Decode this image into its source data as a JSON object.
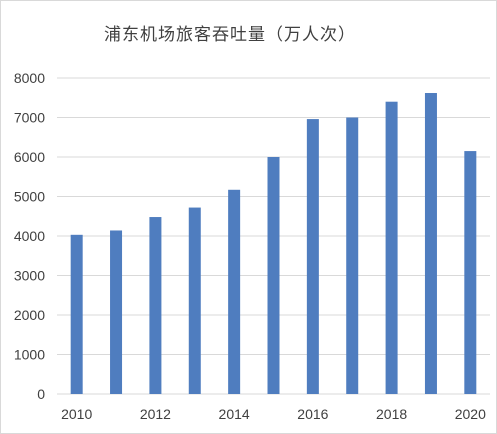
{
  "chart_data": {
    "type": "bar",
    "title": "浦东机场旅客吞吐量（万人次）",
    "xlabel": "",
    "ylabel": "",
    "categories": [
      "2010",
      "2011",
      "2012",
      "2013",
      "2014",
      "2015",
      "2016",
      "2017",
      "2018",
      "2019",
      "2020"
    ],
    "x_tick_labels": [
      "2010",
      "2012",
      "2014",
      "2016",
      "2018",
      "2020"
    ],
    "values": [
      4030,
      4140,
      4480,
      4720,
      5170,
      6000,
      6960,
      7000,
      7400,
      7620,
      6150
    ],
    "ylim": [
      0,
      8000
    ],
    "y_ticks": [
      0,
      1000,
      2000,
      3000,
      4000,
      5000,
      6000,
      7000,
      8000
    ],
    "grid": true,
    "legend": "none",
    "bar_color": "#4f7dbf",
    "grid_color": "#d9d9d9"
  }
}
